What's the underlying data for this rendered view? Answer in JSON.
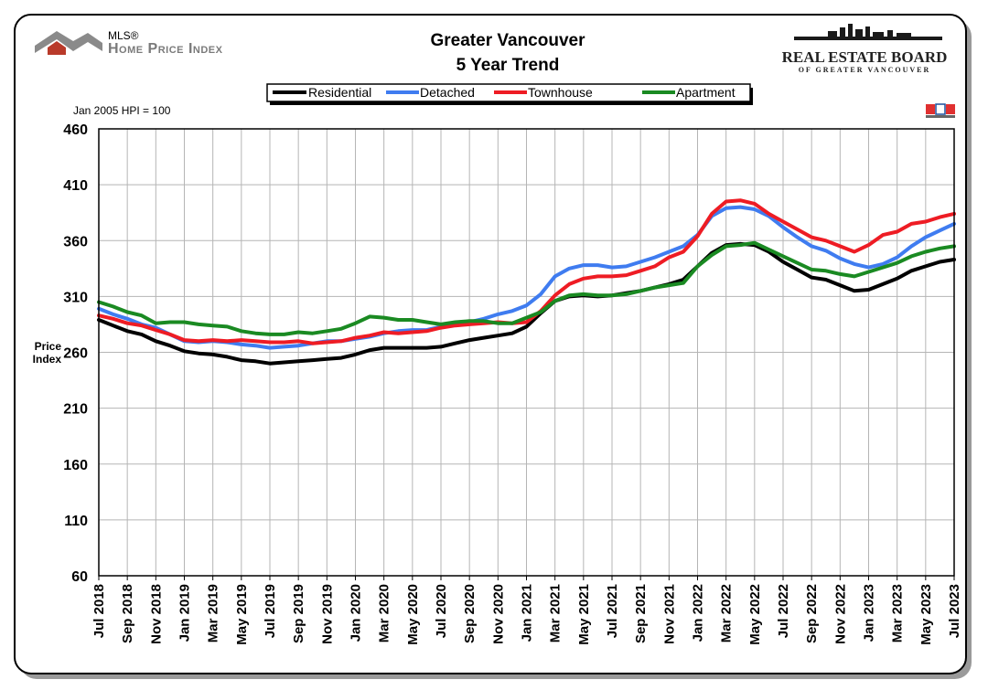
{
  "header": {
    "title_line1": "Greater Vancouver",
    "title_line2": "5 Year Trend",
    "hpi_logo_small": "MLS®",
    "hpi_logo_main": "Home Price Index",
    "board_logo_main": "REAL ESTATE BOARD",
    "board_logo_sub": "OF GREATER VANCOUVER",
    "note": "Jan 2005 HPI = 100"
  },
  "colors": {
    "Residential": "#000000",
    "Detached": "#3f7cf0",
    "Townhouse": "#ee1c24",
    "Apartment": "#1a8a22",
    "grid": "#b5b5b5",
    "axis": "#000000"
  },
  "chart_data": {
    "type": "line",
    "title": "Greater Vancouver 5 Year Trend",
    "ylabel": "Price Index",
    "xlabel": "",
    "ylim": [
      60,
      460
    ],
    "yticks": [
      60,
      110,
      160,
      210,
      260,
      310,
      360,
      410,
      460
    ],
    "grid": true,
    "legend_position": "top",
    "x": [
      "Jul 2018",
      "Aug 2018",
      "Sep 2018",
      "Oct 2018",
      "Nov 2018",
      "Dec 2018",
      "Jan 2019",
      "Feb 2019",
      "Mar 2019",
      "Apr 2019",
      "May 2019",
      "Jun 2019",
      "Jul 2019",
      "Aug 2019",
      "Sep 2019",
      "Oct 2019",
      "Nov 2019",
      "Dec 2019",
      "Jan 2020",
      "Feb 2020",
      "Mar 2020",
      "Apr 2020",
      "May 2020",
      "Jun 2020",
      "Jul 2020",
      "Aug 2020",
      "Sep 2020",
      "Oct 2020",
      "Nov 2020",
      "Dec 2020",
      "Jan 2021",
      "Feb 2021",
      "Mar 2021",
      "Apr 2021",
      "May 2021",
      "Jun 2021",
      "Jul 2021",
      "Aug 2021",
      "Sep 2021",
      "Oct 2021",
      "Nov 2021",
      "Dec 2021",
      "Jan 2022",
      "Feb 2022",
      "Mar 2022",
      "Apr 2022",
      "May 2022",
      "Jun 2022",
      "Jul 2022",
      "Aug 2022",
      "Sep 2022",
      "Oct 2022",
      "Nov 2022",
      "Dec 2022",
      "Jan 2023",
      "Feb 2023",
      "Mar 2023",
      "Apr 2023",
      "May 2023",
      "Jun 2023",
      "Jul 2023"
    ],
    "x_tick_labels": [
      "Jul 2018",
      "Sep 2018",
      "Nov 2018",
      "Jan 2019",
      "Mar 2019",
      "May 2019",
      "Jul 2019",
      "Sep 2019",
      "Nov 2019",
      "Jan 2020",
      "Mar 2020",
      "May 2020",
      "Jul 2020",
      "Sep 2020",
      "Nov 2020",
      "Jan 2021",
      "Mar 2021",
      "May 2021",
      "Jul 2021",
      "Sep 2021",
      "Nov 2021",
      "Jan 2022",
      "Mar 2022",
      "May 2022",
      "Jul 2022",
      "Sep 2022",
      "Nov 2022",
      "Jan 2023",
      "Mar 2023",
      "May 2023",
      "Jul 2023"
    ],
    "series": [
      {
        "name": "Residential",
        "values": [
          289,
          284,
          279,
          276,
          270,
          266,
          261,
          259,
          258,
          256,
          253,
          252,
          250,
          251,
          252,
          253,
          254,
          255,
          258,
          262,
          264,
          264,
          264,
          264,
          265,
          268,
          271,
          273,
          275,
          277,
          283,
          295,
          306,
          310,
          311,
          310,
          311,
          313,
          315,
          318,
          321,
          325,
          337,
          349,
          356,
          357,
          356,
          350,
          341,
          334,
          327,
          325,
          320,
          315,
          316,
          321,
          326,
          333,
          337,
          341,
          343
        ]
      },
      {
        "name": "Detached",
        "values": [
          299,
          294,
          290,
          285,
          282,
          276,
          270,
          269,
          270,
          269,
          267,
          266,
          264,
          265,
          266,
          268,
          270,
          270,
          272,
          274,
          277,
          279,
          280,
          280,
          283,
          285,
          287,
          290,
          294,
          297,
          302,
          312,
          328,
          335,
          338,
          338,
          336,
          337,
          341,
          345,
          350,
          355,
          365,
          382,
          389,
          390,
          388,
          382,
          372,
          363,
          355,
          351,
          344,
          339,
          336,
          339,
          345,
          355,
          363,
          369,
          375
        ]
      },
      {
        "name": "Townhouse",
        "values": [
          293,
          290,
          286,
          284,
          280,
          276,
          271,
          270,
          271,
          270,
          271,
          270,
          269,
          269,
          270,
          268,
          269,
          270,
          273,
          275,
          278,
          277,
          278,
          279,
          282,
          284,
          285,
          286,
          287,
          286,
          287,
          297,
          311,
          321,
          326,
          328,
          328,
          329,
          333,
          337,
          345,
          350,
          364,
          384,
          395,
          396,
          393,
          384,
          377,
          370,
          363,
          360,
          355,
          350,
          356,
          365,
          368,
          375,
          377,
          381,
          384
        ]
      },
      {
        "name": "Apartment",
        "values": [
          305,
          301,
          296,
          293,
          286,
          287,
          287,
          285,
          284,
          283,
          279,
          277,
          276,
          276,
          278,
          277,
          279,
          281,
          286,
          292,
          291,
          289,
          289,
          287,
          285,
          287,
          288,
          288,
          286,
          286,
          291,
          296,
          306,
          311,
          312,
          311,
          311,
          312,
          315,
          318,
          320,
          322,
          337,
          347,
          355,
          356,
          358,
          352,
          346,
          340,
          334,
          333,
          330,
          328,
          332,
          336,
          340,
          346,
          350,
          353,
          355
        ]
      }
    ]
  }
}
